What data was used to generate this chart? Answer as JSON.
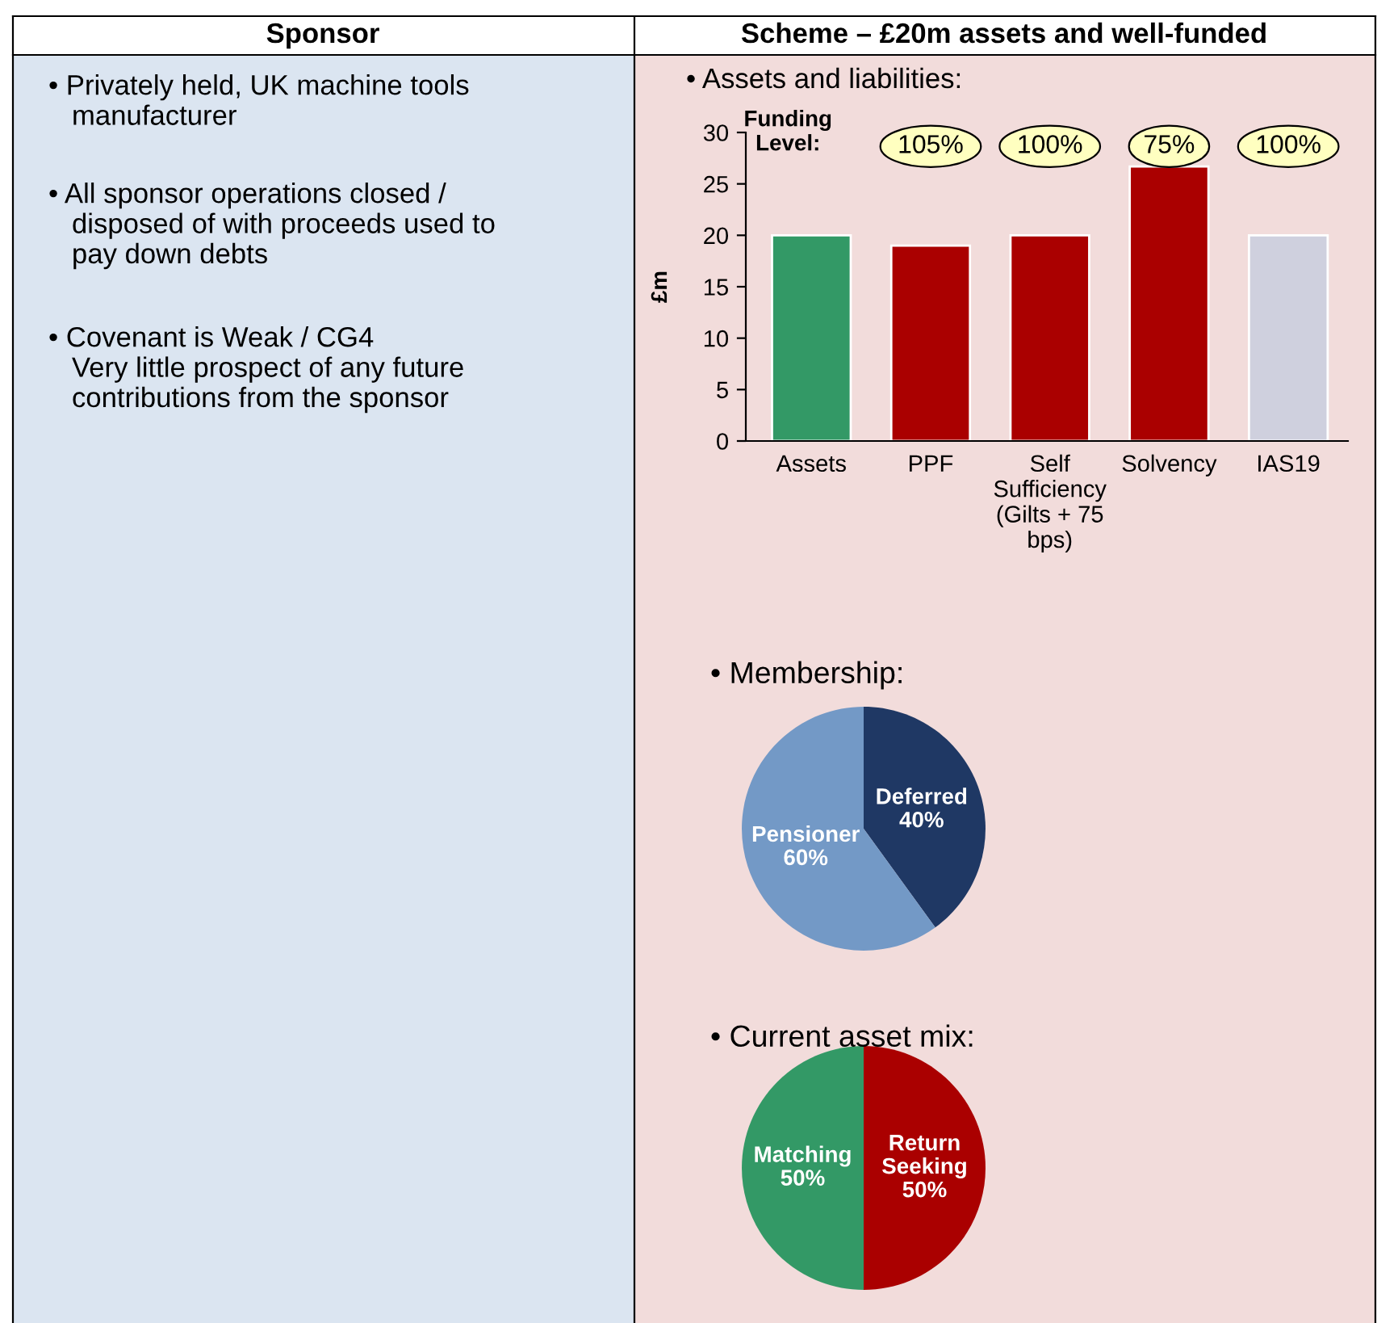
{
  "chart_data": [
    {
      "type": "other",
      "title": "Sponsor",
      "annotations": [
        "• Privately held, UK machine tools\n   manufacturer",
        "• All sponsor operations closed /\n   disposed of with proceeds used to\n   pay down debts",
        "• Covenant is Weak / CG4\n   Very little prospect of any future\n   contributions from the sponsor"
      ]
    },
    {
      "type": "bar",
      "title": "Scheme – £20m assets and well-funded",
      "subtitle": "• Assets and liabilities:",
      "ylabel": "£m",
      "categories": [
        "Assets",
        "PPF",
        "Self\nSufficiency\n(Gilts + 75\nbps)",
        "Solvency",
        "IAS19"
      ],
      "values": [
        20,
        19,
        20,
        26.7,
        20
      ],
      "colors": [
        "#339966",
        "#aa0000",
        "#aa0000",
        "#aa0000",
        "#cfd0de"
      ],
      "ylim": [
        0,
        30
      ],
      "yticks": [
        0,
        5,
        10,
        15,
        20,
        25,
        30
      ],
      "grid": false,
      "annotations": [
        "Funding\nLevel:",
        "105%",
        "100%",
        "75%",
        "100%"
      ]
    },
    {
      "type": "pie",
      "title": "• Membership:",
      "categories": [
        "Deferred",
        "Pensioner"
      ],
      "values": [
        40,
        60
      ],
      "colors": [
        "#1f3864",
        "#7399c6"
      ],
      "value_labels": [
        "40%",
        "60%"
      ]
    },
    {
      "type": "pie",
      "title": "• Current asset mix:",
      "categories": [
        "Return\nSeeking",
        "Matching"
      ],
      "values": [
        50,
        50
      ],
      "colors": [
        "#aa0000",
        "#339966"
      ],
      "value_labels": [
        "50%",
        "50%"
      ]
    }
  ]
}
